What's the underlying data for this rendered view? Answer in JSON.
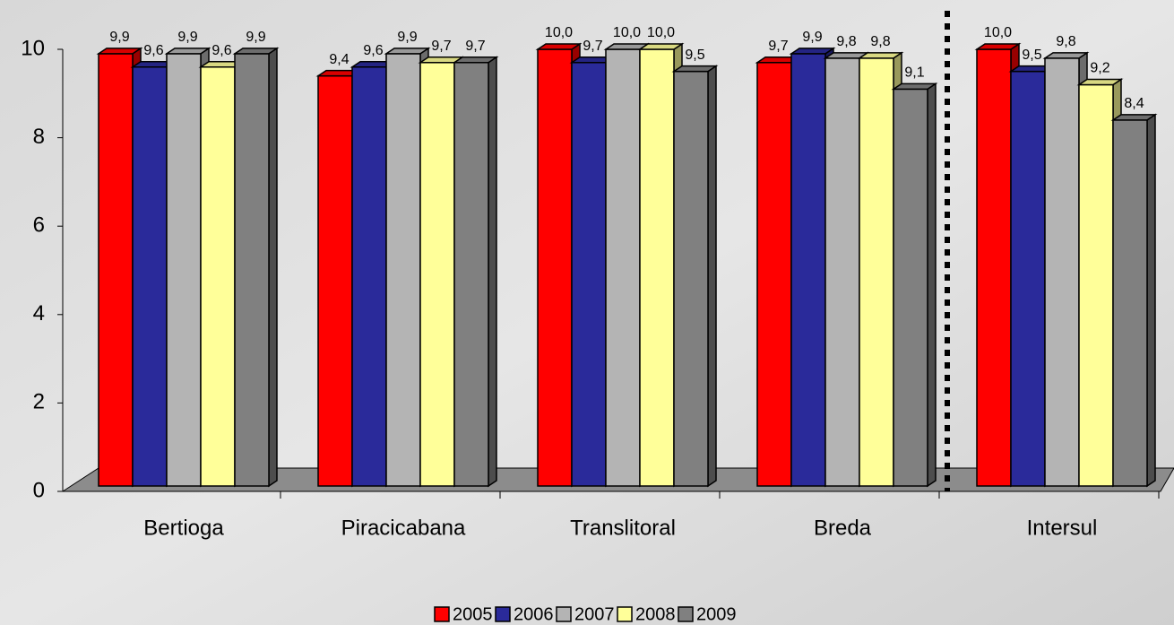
{
  "chart_data": {
    "type": "bar",
    "categories": [
      "Bertioga",
      "Piracicabana",
      "Translitoral",
      "Breda",
      "Intersul"
    ],
    "series": [
      {
        "name": "2005",
        "color": "#ff0000",
        "values": [
          9.9,
          9.4,
          10.0,
          9.7,
          10.0
        ],
        "value_labels": [
          "9,9",
          "9,4",
          "10,0",
          "9,7",
          "10,0"
        ]
      },
      {
        "name": "2006",
        "color": "#2a2a9a",
        "values": [
          9.6,
          9.6,
          9.7,
          9.9,
          9.5
        ],
        "value_labels": [
          "9,6",
          "9,6",
          "9,7",
          "9,9",
          "9,5"
        ]
      },
      {
        "name": "2007",
        "color": "#b4b4b4",
        "values": [
          9.9,
          9.9,
          10.0,
          9.8,
          9.8
        ],
        "value_labels": [
          "9,9",
          "9,9",
          "10,0",
          "9,8",
          "9,8"
        ]
      },
      {
        "name": "2008",
        "color": "#ffff99",
        "values": [
          9.6,
          9.7,
          10.0,
          9.8,
          9.2
        ],
        "value_labels": [
          "9,6",
          "9,7",
          "10,0",
          "9,8",
          "9,2"
        ]
      },
      {
        "name": "2009",
        "color": "#808080",
        "values": [
          9.9,
          9.7,
          9.5,
          9.1,
          8.4
        ],
        "value_labels": [
          "9,9",
          "9,7",
          "9,5",
          "9,1",
          "8,4"
        ]
      }
    ],
    "ylim": [
      0,
      10
    ],
    "yticks": [
      0,
      2,
      4,
      6,
      8,
      10
    ],
    "legend": "bottom"
  }
}
